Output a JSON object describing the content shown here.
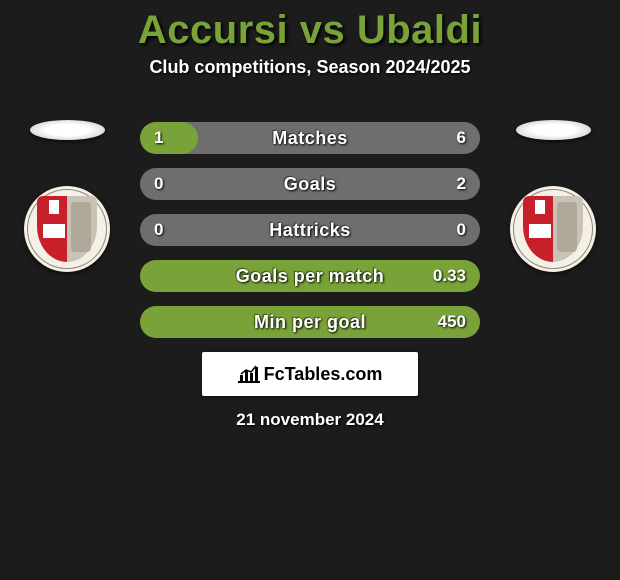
{
  "colors": {
    "background": "#1c1c1c",
    "title_color": "#79a339",
    "text_color": "#ffffff",
    "brand_bg": "#ffffff",
    "brand_text": "#000000",
    "crest_bg": "#f5f0e6",
    "crest_shield_red": "#c8202a",
    "crest_shield_grey": "#c9c2b6"
  },
  "title": "Accursi vs Ubaldi",
  "subtitle": "Club competitions, Season 2024/2025",
  "bars": [
    {
      "label": "Matches",
      "left_value": "1",
      "right_value": "6",
      "left_pct": 17,
      "right_pct": 83,
      "left_color": "#79a339",
      "right_color": "#6e6e6e",
      "bg_color": "#6e6e6e"
    },
    {
      "label": "Goals",
      "left_value": "0",
      "right_value": "2",
      "left_pct": 0,
      "right_pct": 100,
      "left_color": "#79a339",
      "right_color": "#6e6e6e",
      "bg_color": "#6e6e6e"
    },
    {
      "label": "Hattricks",
      "left_value": "0",
      "right_value": "0",
      "left_pct": 0,
      "right_pct": 0,
      "left_color": "#79a339",
      "right_color": "#6e6e6e",
      "bg_color": "#6e6e6e"
    },
    {
      "label": "Goals per match",
      "left_value": "",
      "right_value": "0.33",
      "left_pct": 0,
      "right_pct": 100,
      "left_color": "#79a339",
      "right_color": "#79a339",
      "bg_color": "#79a339"
    },
    {
      "label": "Min per goal",
      "left_value": "",
      "right_value": "450",
      "left_pct": 0,
      "right_pct": 100,
      "left_color": "#79a339",
      "right_color": "#79a339",
      "bg_color": "#79a339"
    }
  ],
  "brand": "FcTables.com",
  "date": "21 november 2024"
}
